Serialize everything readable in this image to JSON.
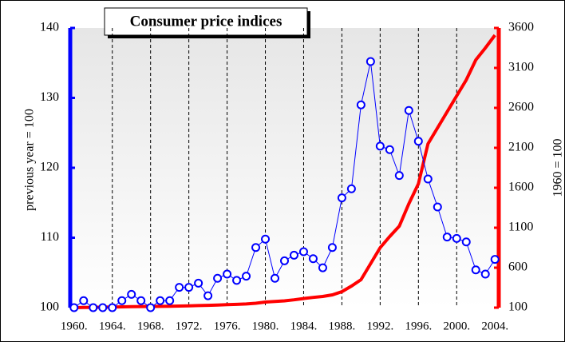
{
  "chart_data": {
    "type": "line",
    "title": "Consumer price indices",
    "ylabel": "previous year = 100",
    "y2label": "1960 = 100",
    "x": [
      1960,
      1961,
      1962,
      1963,
      1964,
      1965,
      1966,
      1967,
      1968,
      1969,
      1970,
      1971,
      1972,
      1973,
      1974,
      1975,
      1976,
      1977,
      1978,
      1979,
      1980,
      1981,
      1982,
      1983,
      1984,
      1985,
      1986,
      1987,
      1988,
      1989,
      1990,
      1991,
      1992,
      1993,
      1994,
      1995,
      1996,
      1997,
      1998,
      1999,
      2000,
      2001,
      2002,
      2003,
      2004
    ],
    "series": [
      {
        "name": "previous year = 100",
        "color": "#0000ff",
        "axis": "y",
        "markers": true,
        "values": [
          100,
          101,
          100,
          100,
          100,
          101,
          101.9,
          101,
          100,
          101,
          101,
          102.9,
          102.9,
          103.5,
          101.7,
          104.2,
          104.8,
          103.9,
          104.5,
          108.6,
          109.8,
          104.2,
          106.7,
          107.5,
          108,
          107,
          105.7,
          108.6,
          115.7,
          117,
          129,
          135.2,
          123.1,
          122.6,
          118.9,
          128.2,
          123.8,
          118.4,
          114.4,
          110.1,
          109.9,
          109.4,
          105.4,
          104.8,
          106.9
        ]
      },
      {
        "name": "1960 = 100",
        "color": "#ff0000",
        "axis": "y2",
        "markers": false,
        "values": [
          100,
          102,
          104,
          106,
          108,
          110,
          112,
          114,
          115,
          116,
          118,
          120,
          123,
          126,
          129,
          133,
          137,
          141,
          146,
          155,
          170,
          177,
          185,
          198,
          214,
          228,
          240,
          260,
          300,
          370,
          450,
          650,
          850,
          990,
          1120,
          1400,
          1650,
          2150,
          2350,
          2550,
          2750,
          2950,
          3200,
          3350,
          3510
        ]
      }
    ],
    "xlim": [
      1959.6,
      2004.4
    ],
    "xticks": [
      {
        "value": 1960,
        "label": "1960."
      },
      {
        "value": 1964,
        "label": "1964."
      },
      {
        "value": 1968,
        "label": "1968."
      },
      {
        "value": 1972,
        "label": "1972."
      },
      {
        "value": 1976,
        "label": "1976."
      },
      {
        "value": 1980,
        "label": "1980."
      },
      {
        "value": 1984,
        "label": "1984."
      },
      {
        "value": 1988,
        "label": "1988."
      },
      {
        "value": 1992,
        "label": "1992."
      },
      {
        "value": 1996,
        "label": "1996."
      },
      {
        "value": 2000,
        "label": "2000."
      },
      {
        "value": 2004,
        "label": "2004."
      }
    ],
    "ylim": [
      100,
      140
    ],
    "yticks": [
      100,
      110,
      120,
      130,
      140
    ],
    "y2lim": [
      100,
      3600
    ],
    "y2ticks": [
      100,
      600,
      1100,
      1600,
      2100,
      2600,
      3100,
      3600
    ],
    "ycolor": "#0000ff",
    "y2color": "#ff0000",
    "grid": true
  }
}
